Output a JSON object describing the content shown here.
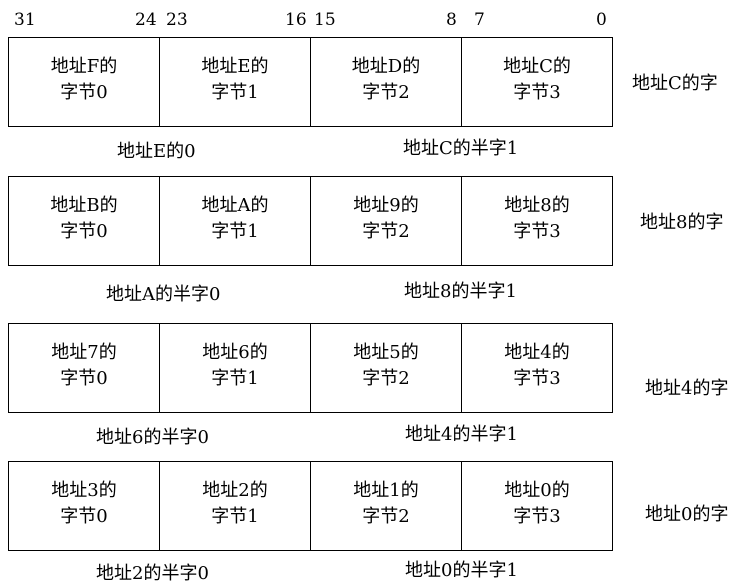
{
  "bit_numbers": [
    "31",
    "24",
    "23",
    "16",
    "15",
    "8",
    "7",
    "0"
  ],
  "rows": [
    {
      "bytes": [
        {
          "line1": "地址F的",
          "line2": "字节0"
        },
        {
          "line1": "地址E的",
          "line2": "字节1"
        },
        {
          "line1": "地址D的",
          "line2": "字节2"
        },
        {
          "line1": "地址C的",
          "line2": "字节3"
        }
      ],
      "word_label": "地址C的字",
      "half_left": "地址E的0",
      "half_right": "地址C的半字1"
    },
    {
      "bytes": [
        {
          "line1": "地址B的",
          "line2": "字节0"
        },
        {
          "line1": "地址A的",
          "line2": "字节1"
        },
        {
          "line1": "地址9的",
          "line2": "字节2"
        },
        {
          "line1": "地址8的",
          "line2": "字节3"
        }
      ],
      "word_label": "地址8的字",
      "half_left": "地址A的半字0",
      "half_right": "地址8的半字1"
    },
    {
      "bytes": [
        {
          "line1": "地址7的",
          "line2": "字节0"
        },
        {
          "line1": "地址6的",
          "line2": "字节1"
        },
        {
          "line1": "地址5的",
          "line2": "字节2"
        },
        {
          "line1": "地址4的",
          "line2": "字节3"
        }
      ],
      "word_label": "地址4的字",
      "half_left": "地址6的半字0",
      "half_right": "地址4的半字1"
    },
    {
      "bytes": [
        {
          "line1": "地址3的",
          "line2": "字节0"
        },
        {
          "line1": "地址2的",
          "line2": "字节1"
        },
        {
          "line1": "地址1的",
          "line2": "字节2"
        },
        {
          "line1": "地址0的",
          "line2": "字节3"
        }
      ],
      "word_label": "地址0的字",
      "half_left": "地址2的半字0",
      "half_right": "地址0的半字1"
    }
  ]
}
